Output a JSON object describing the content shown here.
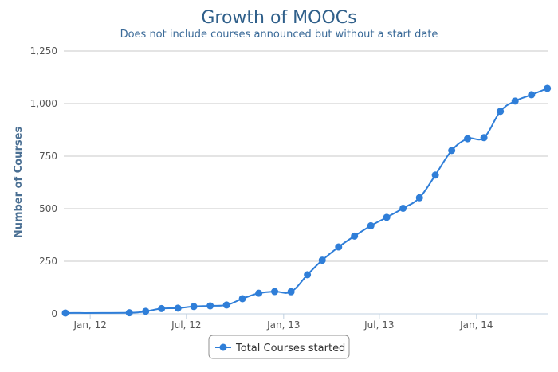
{
  "chart_data": {
    "type": "line",
    "title": "Growth of MOOCs",
    "subtitle": "Does not include courses announced but without a start date",
    "xlabel": "",
    "ylabel": "Number of Courses",
    "ylim": [
      0,
      1250
    ],
    "yticks": [
      0,
      250,
      500,
      750,
      1000,
      1250
    ],
    "ytick_labels": [
      "0",
      "250",
      "500",
      "750",
      "1,000",
      "1,250"
    ],
    "xlim": [
      "2011-11-12",
      "2014-05-17"
    ],
    "xticks": [
      {
        "date": "2012-01-01",
        "label": "Jan, 12"
      },
      {
        "date": "2012-07-01",
        "label": "Jul, 12"
      },
      {
        "date": "2013-01-01",
        "label": "Jan, 13"
      },
      {
        "date": "2013-07-01",
        "label": "Jul, 13"
      },
      {
        "date": "2014-01-01",
        "label": "Jan, 14"
      }
    ],
    "grid": true,
    "legend": "bottom-center",
    "color": "#2f7ed8",
    "series": [
      {
        "name": "Total Courses started",
        "points": [
          {
            "x": "2011-11-15",
            "y": 4
          },
          {
            "x": "2012-03-15",
            "y": 5
          },
          {
            "x": "2012-04-15",
            "y": 12
          },
          {
            "x": "2012-05-15",
            "y": 25
          },
          {
            "x": "2012-06-15",
            "y": 27
          },
          {
            "x": "2012-07-15",
            "y": 35
          },
          {
            "x": "2012-08-15",
            "y": 38
          },
          {
            "x": "2012-09-15",
            "y": 42
          },
          {
            "x": "2012-10-15",
            "y": 72
          },
          {
            "x": "2012-11-15",
            "y": 98
          },
          {
            "x": "2012-12-15",
            "y": 106
          },
          {
            "x": "2013-01-15",
            "y": 105
          },
          {
            "x": "2013-02-15",
            "y": 186
          },
          {
            "x": "2013-03-15",
            "y": 255
          },
          {
            "x": "2013-04-15",
            "y": 318
          },
          {
            "x": "2013-05-15",
            "y": 370
          },
          {
            "x": "2013-06-15",
            "y": 419
          },
          {
            "x": "2013-07-15",
            "y": 459
          },
          {
            "x": "2013-08-15",
            "y": 502
          },
          {
            "x": "2013-09-15",
            "y": 552
          },
          {
            "x": "2013-10-15",
            "y": 660
          },
          {
            "x": "2013-11-15",
            "y": 777
          },
          {
            "x": "2013-12-15",
            "y": 833
          },
          {
            "x": "2014-01-15",
            "y": 838
          },
          {
            "x": "2014-02-15",
            "y": 963
          },
          {
            "x": "2014-03-15",
            "y": 1012
          },
          {
            "x": "2014-04-15",
            "y": 1042
          },
          {
            "x": "2014-05-15",
            "y": 1072
          }
        ]
      }
    ]
  }
}
